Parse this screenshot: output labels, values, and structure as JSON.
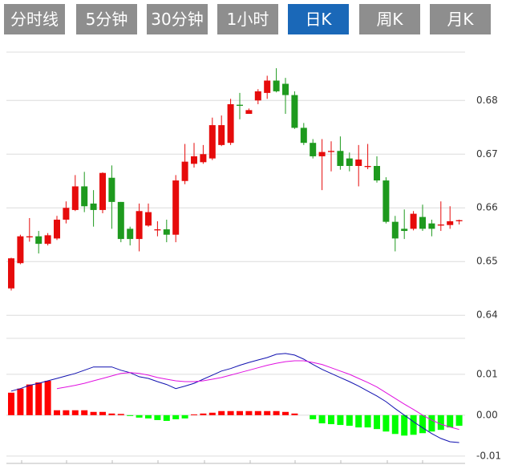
{
  "tabs": [
    {
      "label": "分时线",
      "active": false
    },
    {
      "label": "5分钟",
      "active": false
    },
    {
      "label": "30分钟",
      "active": false
    },
    {
      "label": "1小时",
      "active": false
    },
    {
      "label": "日K",
      "active": true
    },
    {
      "label": "周K",
      "active": false
    },
    {
      "label": "月K",
      "active": false
    }
  ],
  "tab_colors": {
    "active": "#1a68b8",
    "inactive": "#8e8e8e"
  },
  "chart_data": [
    {
      "type": "candlestick",
      "up_color": "#e60b0b",
      "down_color": "#1e9a1e",
      "grid": true,
      "open": [
        0.645,
        0.6497,
        0.6545,
        0.6547,
        0.6533,
        0.6543,
        0.6578,
        0.6596,
        0.664,
        0.6608,
        0.6596,
        0.6656,
        0.6611,
        0.6561,
        0.6542,
        0.6567,
        0.6558,
        0.656,
        0.655,
        0.665,
        0.6682,
        0.6685,
        0.6692,
        0.6717,
        0.6721,
        0.6792,
        0.6775,
        0.68,
        0.6814,
        0.6837,
        0.6831,
        0.681,
        0.6749,
        0.6721,
        0.6696,
        0.6704,
        0.6706,
        0.6692,
        0.6678,
        0.6676,
        0.6678,
        0.6651,
        0.6574,
        0.6561,
        0.6561,
        0.6583,
        0.6571,
        0.6567,
        0.6568,
        0.6575
      ],
      "high": [
        0.6507,
        0.655,
        0.6581,
        0.6557,
        0.6553,
        0.6585,
        0.6612,
        0.6661,
        0.6667,
        0.6633,
        0.6666,
        0.6679,
        0.6611,
        0.6565,
        0.6608,
        0.6608,
        0.6575,
        0.6578,
        0.6661,
        0.6719,
        0.6721,
        0.6717,
        0.6768,
        0.6772,
        0.6803,
        0.6814,
        0.6785,
        0.6821,
        0.6846,
        0.686,
        0.6842,
        0.6817,
        0.6758,
        0.6728,
        0.6728,
        0.6724,
        0.6733,
        0.6703,
        0.6717,
        0.6719,
        0.6696,
        0.6657,
        0.6585,
        0.6597,
        0.6594,
        0.6606,
        0.6578,
        0.6612,
        0.6603,
        0.6578
      ],
      "low": [
        0.6446,
        0.6495,
        0.6537,
        0.6515,
        0.653,
        0.654,
        0.6571,
        0.6594,
        0.6592,
        0.6565,
        0.659,
        0.6561,
        0.6536,
        0.653,
        0.6519,
        0.6565,
        0.6547,
        0.6536,
        0.6536,
        0.6644,
        0.6675,
        0.6682,
        0.6689,
        0.6715,
        0.6717,
        0.6765,
        0.6775,
        0.6793,
        0.6803,
        0.6815,
        0.6775,
        0.6747,
        0.6717,
        0.6692,
        0.6633,
        0.6668,
        0.6671,
        0.6668,
        0.664,
        0.6672,
        0.6647,
        0.6571,
        0.6519,
        0.6542,
        0.6558,
        0.6557,
        0.6547,
        0.6557,
        0.6561,
        0.6569
      ],
      "close": [
        0.6506,
        0.6547,
        0.6547,
        0.6533,
        0.6549,
        0.6578,
        0.66,
        0.664,
        0.6603,
        0.6596,
        0.6665,
        0.6611,
        0.6542,
        0.6542,
        0.6594,
        0.6592,
        0.656,
        0.655,
        0.6651,
        0.6686,
        0.6696,
        0.67,
        0.6754,
        0.6754,
        0.6793,
        0.679,
        0.6782,
        0.6817,
        0.6837,
        0.6817,
        0.681,
        0.6749,
        0.6721,
        0.6696,
        0.6704,
        0.6706,
        0.6678,
        0.6678,
        0.669,
        0.6678,
        0.6651,
        0.6574,
        0.6543,
        0.6557,
        0.6589,
        0.6561,
        0.6561,
        0.6569,
        0.6575,
        0.6577
      ],
      "ylim": [
        0.636,
        0.689
      ],
      "yticks": [
        0.64,
        0.65,
        0.66,
        0.67,
        0.68
      ]
    },
    {
      "type": "macd",
      "up_color": "#ff0000",
      "down_color": "#00ff00",
      "grid": true,
      "values": [
        0.0055,
        0.0065,
        0.0075,
        0.008,
        0.0084,
        0.0012,
        0.0012,
        0.0012,
        0.0012,
        0.0008,
        0.0008,
        0.0004,
        0.0003,
        -0.0002,
        -0.0006,
        -0.0008,
        -0.0012,
        -0.0014,
        -0.001,
        -0.0008,
        0.0002,
        0.0004,
        0.0006,
        0.001,
        0.001,
        0.001,
        0.001,
        0.001,
        0.001,
        0.001,
        0.0008,
        0.0004,
        0.0,
        -0.001,
        -0.002,
        -0.0022,
        -0.0024,
        -0.0026,
        -0.003,
        -0.003,
        -0.0034,
        -0.004,
        -0.0046,
        -0.005,
        -0.0048,
        -0.0044,
        -0.004,
        -0.0036,
        -0.003,
        -0.0026
      ],
      "series": [
        {
          "color": "#1010b0",
          "values": [
            0.0059,
            0.0065,
            0.0073,
            0.0078,
            0.0084,
            0.009,
            0.0096,
            0.0102,
            0.011,
            0.0118,
            0.0118,
            0.0118,
            0.011,
            0.0104,
            0.0094,
            0.009,
            0.0082,
            0.0075,
            0.0065,
            0.0071,
            0.0078,
            0.0088,
            0.0098,
            0.0108,
            0.0114,
            0.0122,
            0.0129,
            0.0135,
            0.0141,
            0.0149,
            0.0151,
            0.0147,
            0.0137,
            0.0124,
            0.0112,
            0.0102,
            0.0092,
            0.0082,
            0.0071,
            0.0059,
            0.0047,
            0.0033,
            0.0016,
            0.0,
            -0.0016,
            -0.0031,
            -0.0045,
            -0.0057,
            -0.0065,
            -0.0067
          ]
        },
        {
          "color": "#e010e0",
          "values": [
            null,
            null,
            null,
            null,
            null,
            0.0065,
            0.0069,
            0.0073,
            0.0078,
            0.0084,
            0.009,
            0.0096,
            0.0102,
            0.0104,
            0.0102,
            0.0098,
            0.0092,
            0.0088,
            0.0084,
            0.0082,
            0.0082,
            0.0084,
            0.0088,
            0.0092,
            0.0098,
            0.0104,
            0.011,
            0.0116,
            0.0122,
            0.0127,
            0.0131,
            0.0133,
            0.0133,
            0.0129,
            0.0124,
            0.0116,
            0.0108,
            0.01,
            0.009,
            0.008,
            0.0069,
            0.0055,
            0.0041,
            0.0027,
            0.0014,
            0.0,
            -0.0012,
            -0.0022,
            -0.0029,
            -0.0035
          ]
        }
      ],
      "ylim": [
        -0.0118,
        0.0188
      ],
      "yticks": [
        0.01,
        {
          "value": 0,
          "label": "0.00"
        },
        -0.01
      ]
    }
  ]
}
